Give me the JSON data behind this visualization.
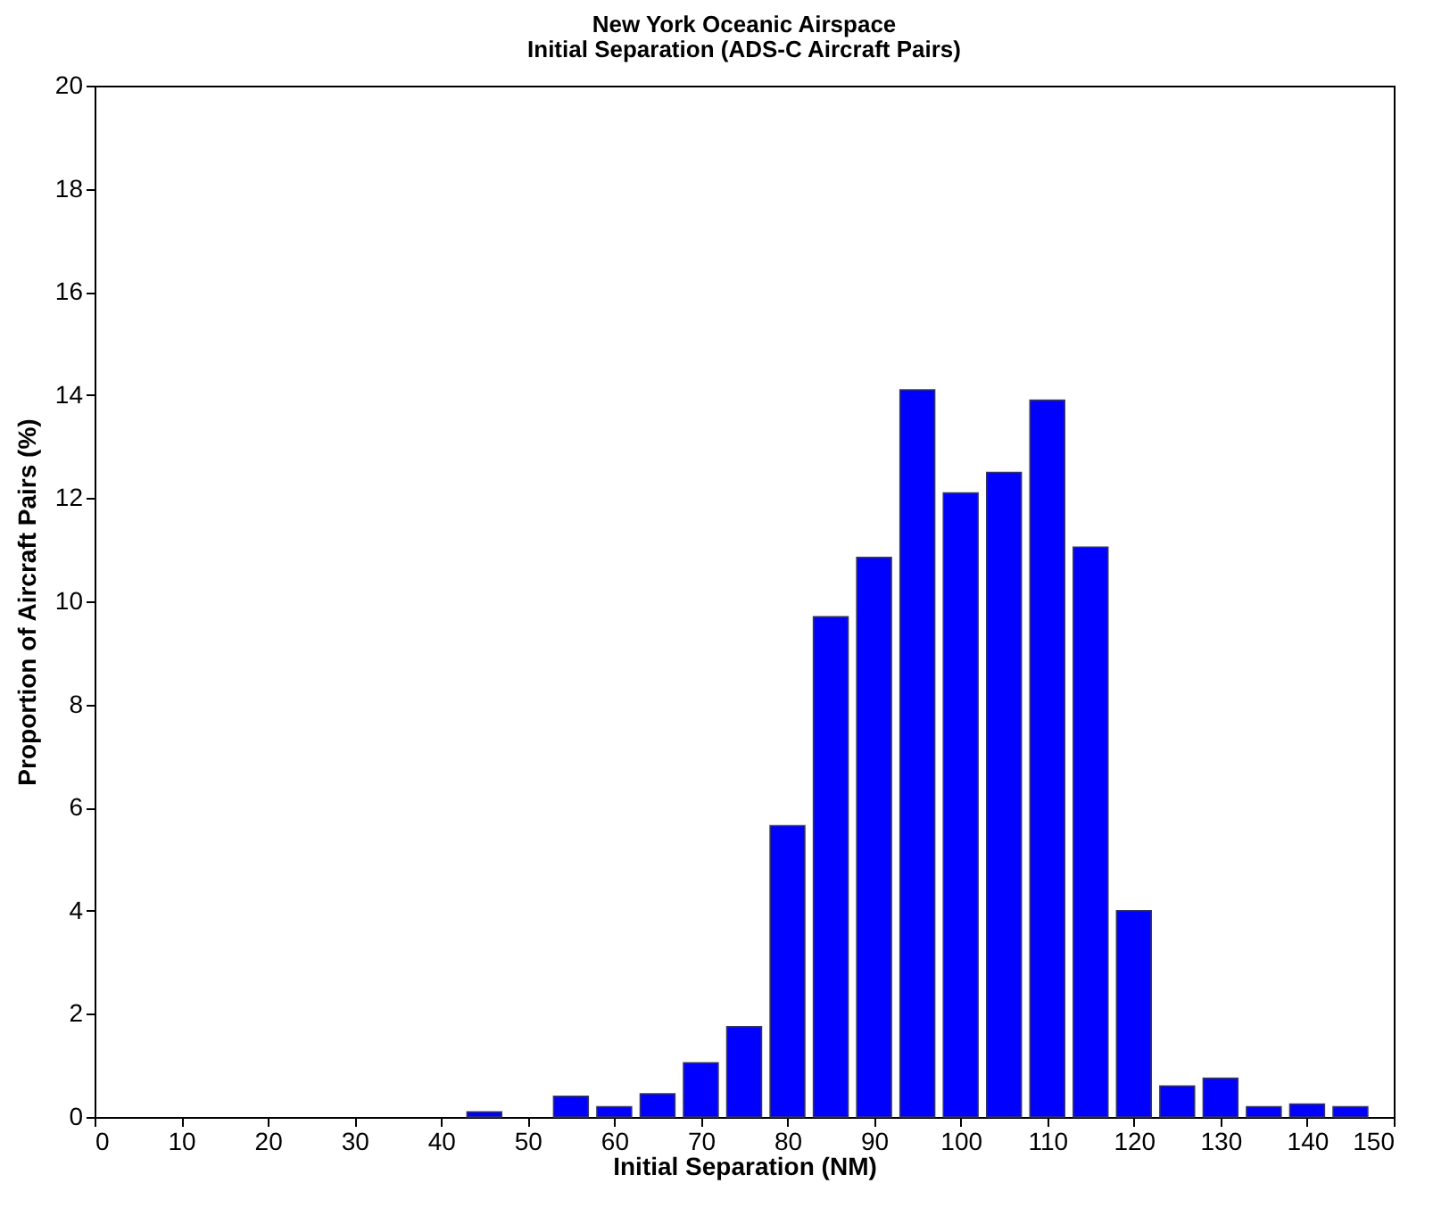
{
  "chart_data": {
    "type": "bar",
    "title": "New York Oceanic Airspace",
    "subtitle": "Initial Separation (ADS-C Aircraft Pairs)",
    "xlabel": "Initial Separation (NM)",
    "ylabel": "Proportion of Aircraft Pairs (%)",
    "x": [
      45,
      55,
      60,
      65,
      70,
      75,
      80,
      85,
      90,
      95,
      100,
      105,
      110,
      115,
      120,
      125,
      130,
      135,
      140,
      145
    ],
    "series": [
      {
        "color": "#0000ff",
        "values": [
          0.1,
          0.4,
          0.2,
          0.45,
          1.05,
          1.75,
          5.65,
          9.7,
          10.85,
          14.1,
          12.1,
          12.5,
          13.9,
          11.05,
          4.0,
          0.6,
          0.75,
          0.2,
          0.25,
          0.2
        ]
      }
    ],
    "xlim": [
      0,
      150
    ],
    "xticks": [
      0,
      10,
      20,
      30,
      40,
      50,
      60,
      70,
      80,
      90,
      100,
      110,
      120,
      130,
      140,
      150
    ],
    "ylim": [
      0,
      20
    ],
    "yticks": [
      0,
      2,
      4,
      6,
      8,
      10,
      12,
      14,
      16,
      18,
      20
    ],
    "grid": false
  }
}
